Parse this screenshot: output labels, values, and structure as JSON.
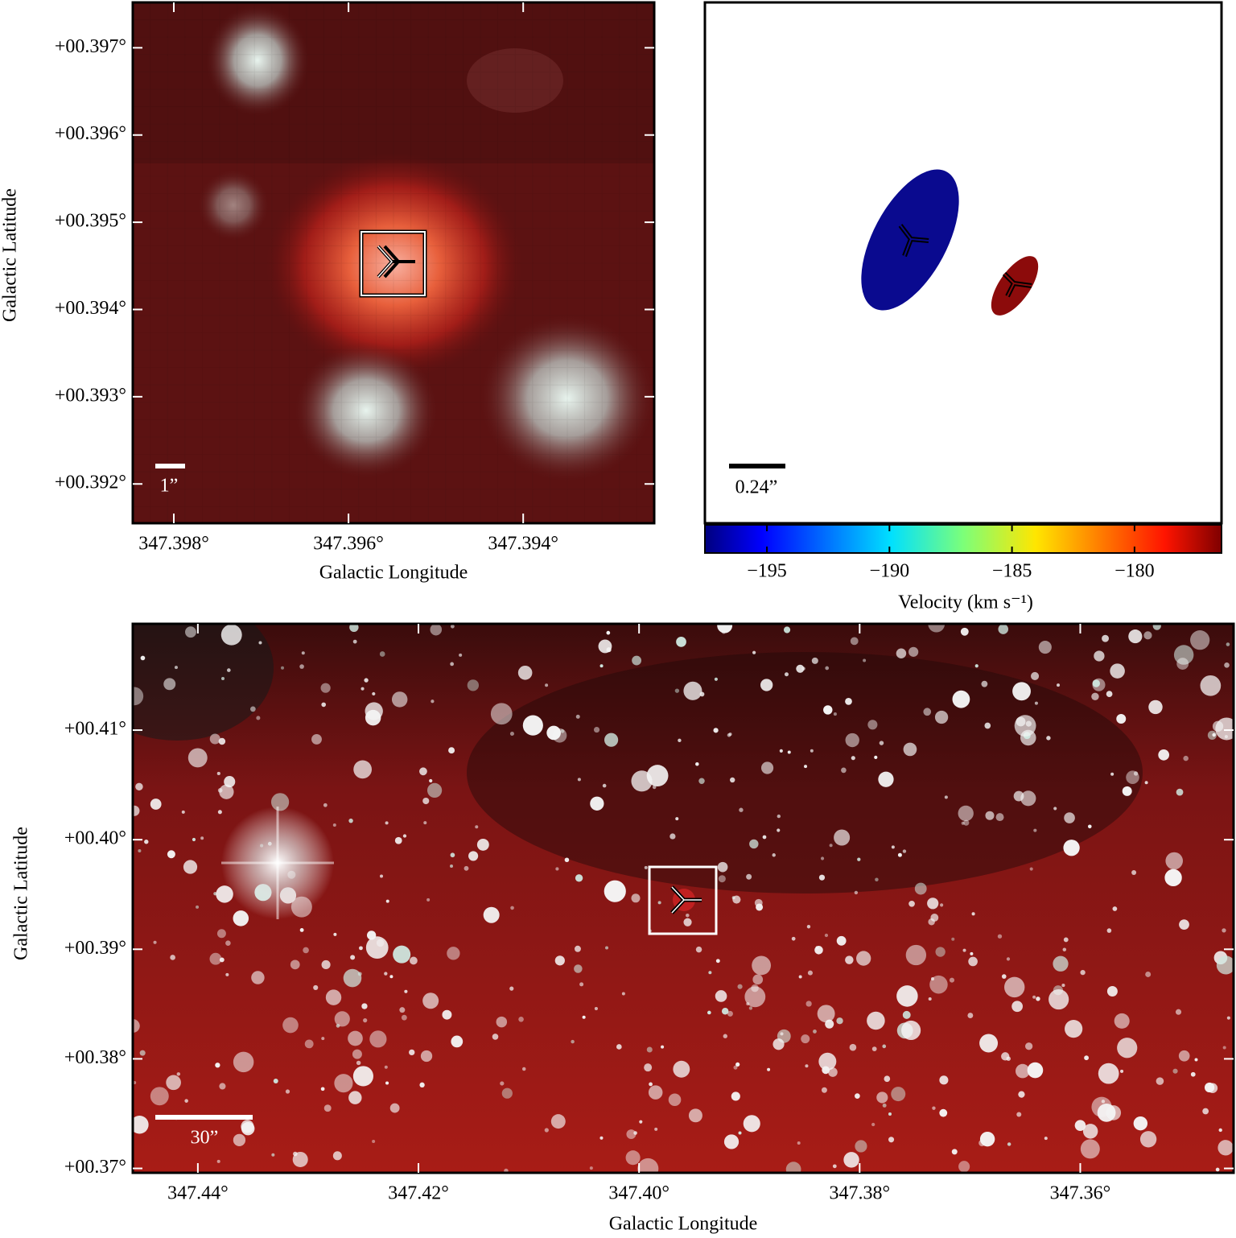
{
  "panels": [
    {
      "xlabel": "Galactic Longitude",
      "ylabel": "Galactic Latitude",
      "xlim": [
        347.39847,
        347.3925
      ],
      "ylim": [
        0.39155,
        0.39752
      ],
      "xticks": [
        {
          "value": 347.398,
          "label": "347.398°"
        },
        {
          "value": 347.396,
          "label": "347.396°"
        },
        {
          "value": 347.394,
          "label": "347.394°"
        }
      ],
      "yticks": [
        {
          "value": 0.392,
          "label": "+00.392°"
        },
        {
          "value": 0.393,
          "label": "+00.393°"
        },
        {
          "value": 0.394,
          "label": "+00.394°"
        },
        {
          "value": 0.395,
          "label": "+00.395°"
        },
        {
          "value": 0.396,
          "label": "+00.396°"
        },
        {
          "value": 0.397,
          "label": "+00.397°"
        }
      ],
      "scalebar": "1”"
    },
    {
      "scalebar": "0.24”",
      "colorbar": {
        "label": "Velocity (km s⁻¹)",
        "lim": [
          -197.53,
          -176.45
        ],
        "ticks": [
          {
            "value": -195,
            "label": "−195"
          },
          {
            "value": -190,
            "label": "−190"
          },
          {
            "value": -185,
            "label": "−185"
          },
          {
            "value": -180,
            "label": "−180"
          }
        ]
      }
    },
    {
      "xlabel": "Galactic Longitude",
      "ylabel": "Galactic Latitude",
      "xlim": [
        347.4459,
        347.3461
      ],
      "ylim": [
        0.3696,
        0.4197
      ],
      "xticks": [
        {
          "value": 347.44,
          "label": "347.44°"
        },
        {
          "value": 347.42,
          "label": "347.42°"
        },
        {
          "value": 347.4,
          "label": "347.40°"
        },
        {
          "value": 347.38,
          "label": "347.38°"
        },
        {
          "value": 347.36,
          "label": "347.36°"
        }
      ],
      "yticks": [
        {
          "value": 0.37,
          "label": "+00.37°"
        },
        {
          "value": 0.38,
          "label": "+00.38°"
        },
        {
          "value": 0.39,
          "label": "+00.39°"
        },
        {
          "value": 0.4,
          "label": "+00.40°"
        },
        {
          "value": 0.41,
          "label": "+00.41°"
        }
      ],
      "scalebar": "30”"
    }
  ]
}
